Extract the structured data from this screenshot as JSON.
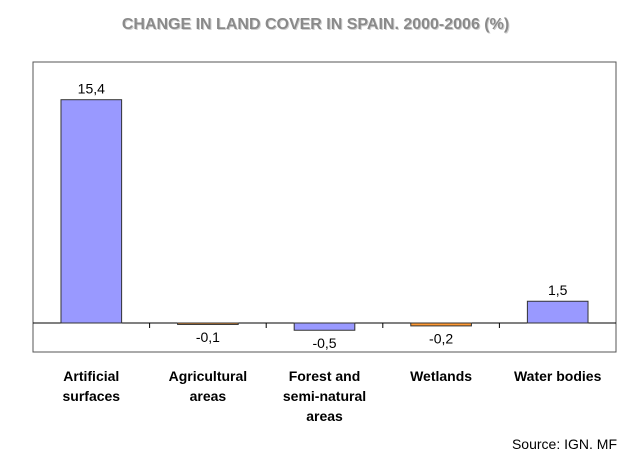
{
  "chart_data": {
    "type": "bar",
    "title": "CHANGE IN LAND COVER IN SPAIN. 2000-2006 (%)",
    "categories": [
      "Artificial surfaces",
      "Agricultural areas",
      "Forest and semi-natural areas",
      "Wetlands",
      "Water bodies"
    ],
    "values": [
      15.4,
      -0.1,
      -0.5,
      -0.2,
      1.5
    ],
    "value_labels": [
      "15,4",
      "-0,1",
      "-0,5",
      "-0,2",
      "1,5"
    ],
    "colors": [
      "#9999ff",
      "#ff9933",
      "#9999ff",
      "#ff9933",
      "#9999ff"
    ],
    "ylim": [
      -2,
      18
    ],
    "source": "Source: IGN. MF"
  }
}
